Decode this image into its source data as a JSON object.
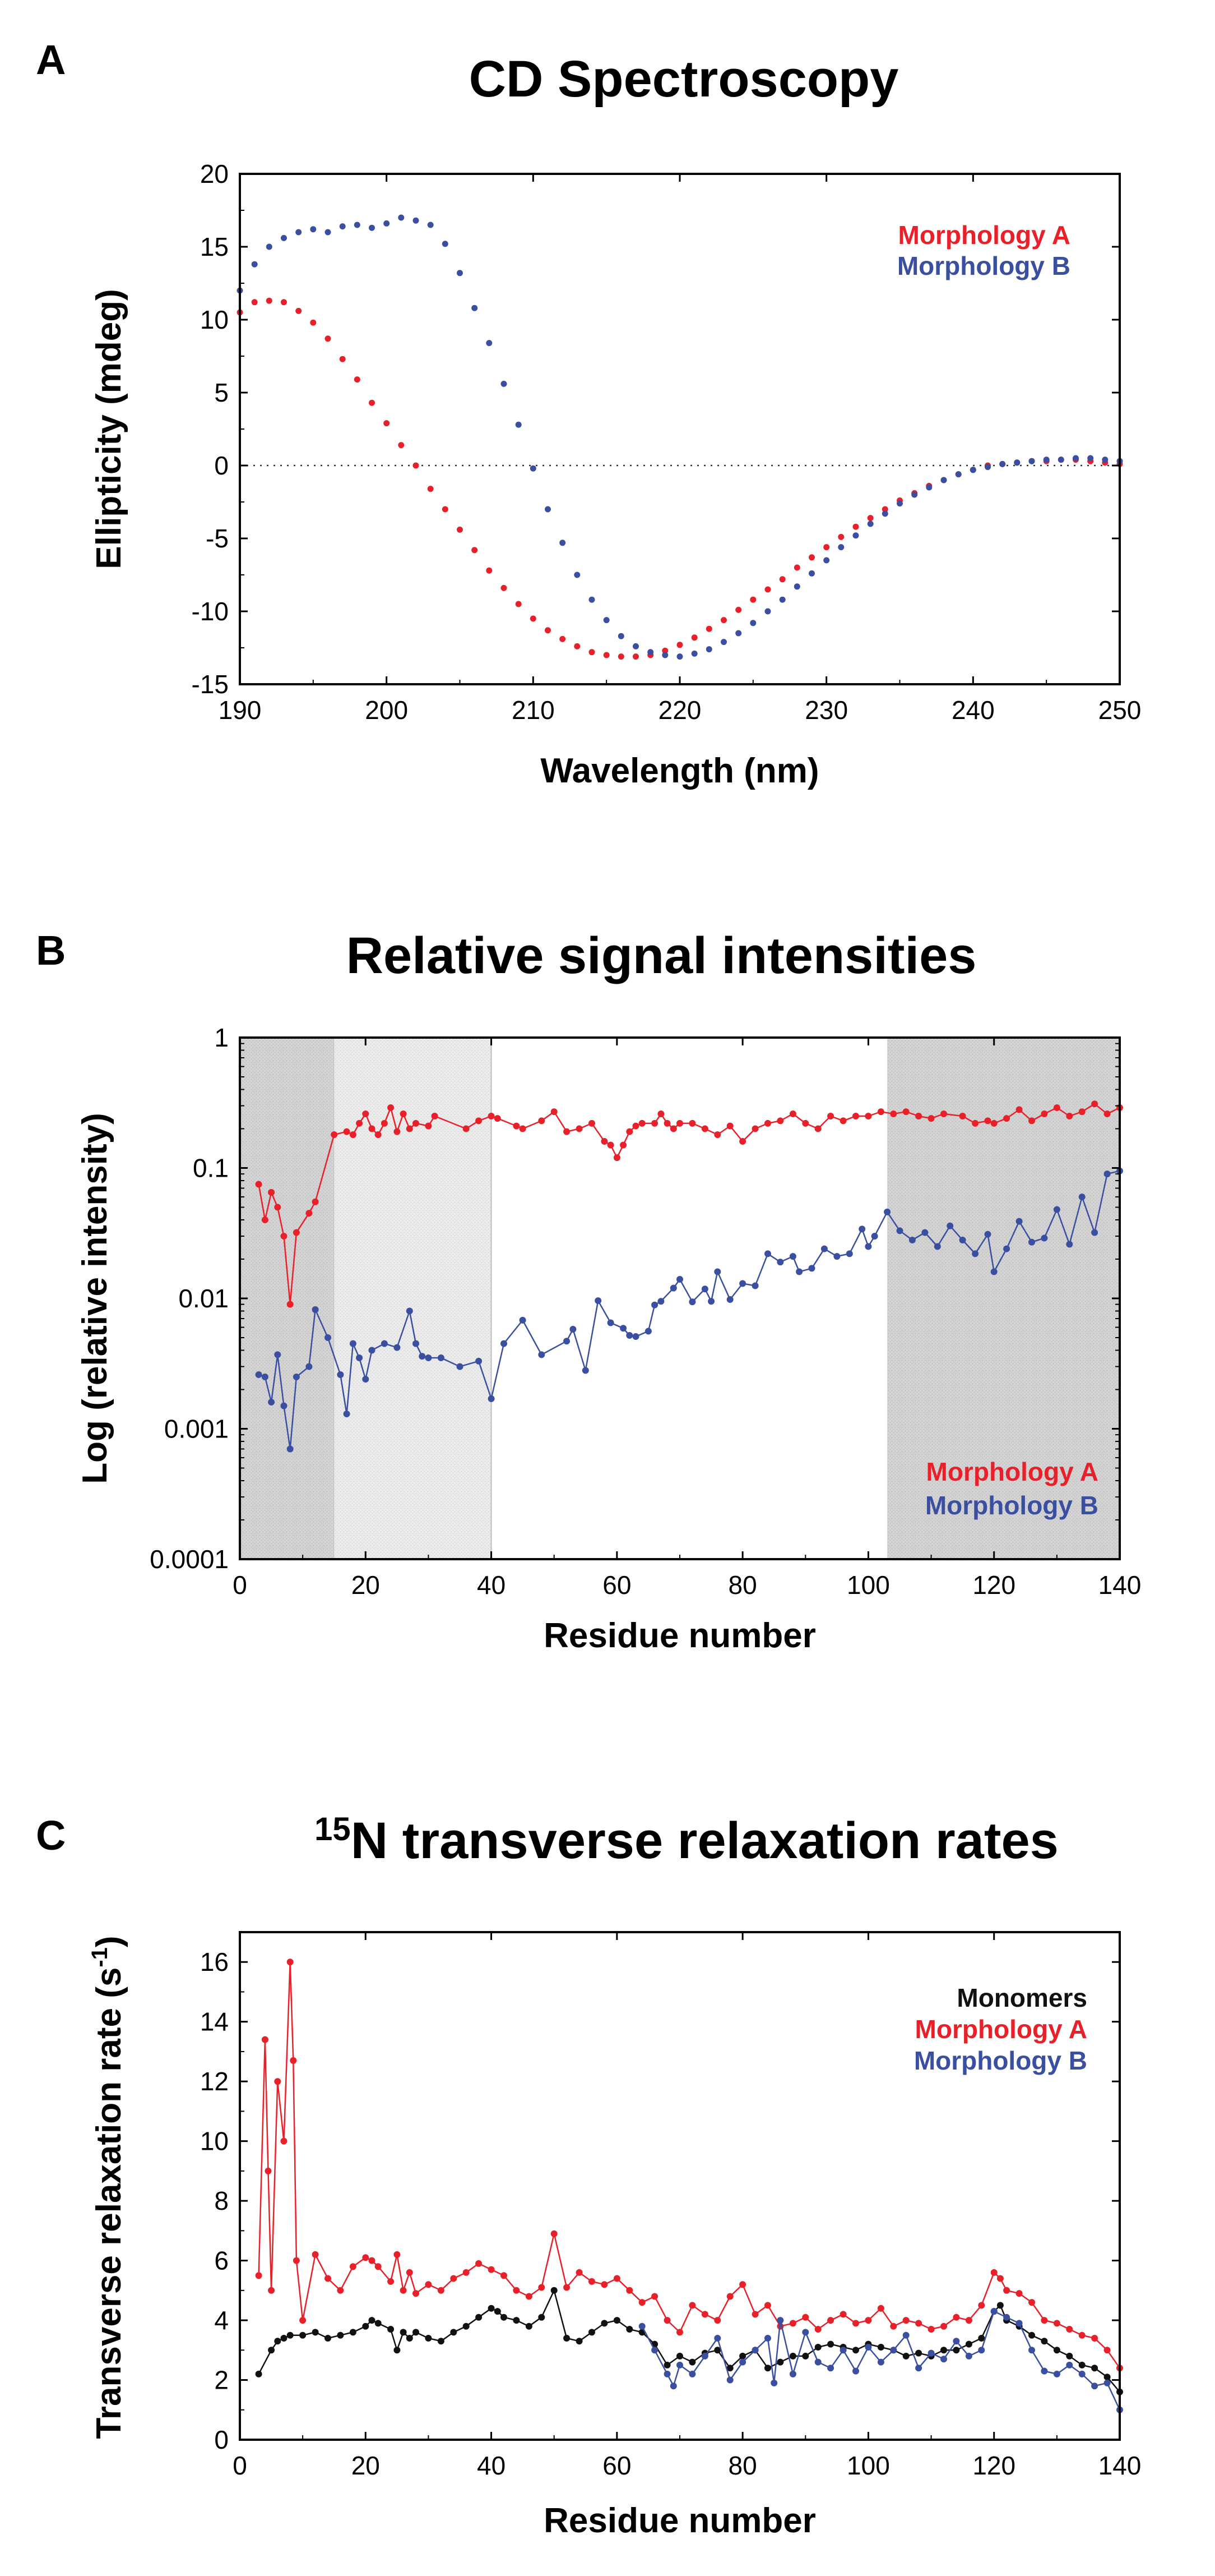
{
  "colors": {
    "morphology_a": "#e8202a",
    "morphology_b": "#3a4fa0",
    "monomers": "#111111",
    "shade": "#d9d9d9"
  },
  "chart_data": [
    {
      "panel": "A",
      "type": "scatter",
      "title": "CD Spectroscopy",
      "xlabel": "Wavelength (nm)",
      "ylabel": "Ellipticity (mdeg)",
      "xlim": [
        190,
        250
      ],
      "ylim": [
        -15,
        20
      ],
      "xticks": [
        "190",
        "200",
        "210",
        "220",
        "230",
        "240",
        "250"
      ],
      "yticks": [
        "-15",
        "-10",
        "-5",
        "0",
        "5",
        "10",
        "15",
        "20"
      ],
      "zero_line": true,
      "legend": [
        "Morphology A",
        "Morphology B"
      ],
      "series": [
        {
          "name": "Morphology A",
          "color_key": "morphology_a",
          "x": [
            190,
            191,
            192,
            193,
            194,
            195,
            196,
            197,
            198,
            199,
            200,
            201,
            202,
            203,
            204,
            205,
            206,
            207,
            208,
            209,
            210,
            211,
            212,
            213,
            214,
            215,
            216,
            217,
            218,
            219,
            220,
            221,
            222,
            223,
            224,
            225,
            226,
            227,
            228,
            229,
            230,
            231,
            232,
            233,
            234,
            235,
            236,
            237,
            238,
            239,
            240,
            241,
            242,
            243,
            244,
            245,
            246,
            247,
            248,
            249,
            250
          ],
          "y": [
            10.5,
            11.2,
            11.3,
            11.2,
            10.6,
            9.8,
            8.7,
            7.3,
            5.9,
            4.3,
            2.9,
            1.4,
            0,
            -1.6,
            -3.0,
            -4.4,
            -5.8,
            -7.2,
            -8.4,
            -9.5,
            -10.5,
            -11.3,
            -11.9,
            -12.4,
            -12.8,
            -13.0,
            -13.1,
            -13.1,
            -13.0,
            -12.7,
            -12.3,
            -11.8,
            -11.2,
            -10.6,
            -9.9,
            -9.2,
            -8.5,
            -7.8,
            -7.0,
            -6.3,
            -5.6,
            -4.9,
            -4.2,
            -3.6,
            -3.0,
            -2.4,
            -1.9,
            -1.4,
            -1.0,
            -0.6,
            -0.3,
            0,
            0.1,
            0.2,
            0.3,
            0.3,
            0.4,
            0.4,
            0.3,
            0.2,
            0.1
          ]
        },
        {
          "name": "Morphology B",
          "color_key": "morphology_b",
          "x": [
            190,
            191,
            192,
            193,
            194,
            195,
            196,
            197,
            198,
            199,
            200,
            201,
            202,
            203,
            204,
            205,
            206,
            207,
            208,
            209,
            210,
            211,
            212,
            213,
            214,
            215,
            216,
            217,
            218,
            219,
            220,
            221,
            222,
            223,
            224,
            225,
            226,
            227,
            228,
            229,
            230,
            231,
            232,
            233,
            234,
            235,
            236,
            237,
            238,
            239,
            240,
            241,
            242,
            243,
            244,
            245,
            246,
            247,
            248,
            249,
            250
          ],
          "y": [
            12.0,
            13.8,
            15.0,
            15.6,
            16.0,
            16.2,
            16.0,
            16.4,
            16.5,
            16.3,
            16.6,
            17.0,
            16.8,
            16.5,
            15.2,
            13.2,
            10.8,
            8.4,
            5.6,
            2.8,
            -0.2,
            -3.0,
            -5.3,
            -7.5,
            -9.2,
            -10.6,
            -11.7,
            -12.4,
            -12.8,
            -13.0,
            -13.1,
            -12.9,
            -12.6,
            -12.1,
            -11.5,
            -10.8,
            -10.0,
            -9.2,
            -8.3,
            -7.4,
            -6.5,
            -5.6,
            -4.8,
            -4.0,
            -3.3,
            -2.6,
            -2.0,
            -1.5,
            -1.0,
            -0.6,
            -0.3,
            -0.1,
            0.1,
            0.2,
            0.3,
            0.4,
            0.4,
            0.5,
            0.5,
            0.4,
            0.3
          ]
        }
      ]
    },
    {
      "panel": "B",
      "type": "line",
      "title": "Relative signal intensities",
      "xlabel": "Residue number",
      "ylabel": "Log (relative intensity)",
      "xlim": [
        0,
        140
      ],
      "ylim": [
        0.0001,
        1
      ],
      "yscale": "log",
      "xticks": [
        "0",
        "20",
        "40",
        "60",
        "80",
        "100",
        "120",
        "140"
      ],
      "yticks": [
        "0.0001",
        "0.001",
        "0.01",
        "0.1",
        "1"
      ],
      "shaded_regions": [
        [
          0,
          15,
          "dark"
        ],
        [
          15,
          40,
          "light"
        ],
        [
          103,
          140,
          "dark"
        ]
      ],
      "legend": [
        "Morphology A",
        "Morphology B"
      ],
      "series": [
        {
          "name": "Morphology A",
          "color_key": "morphology_a",
          "x": [
            3,
            4,
            5,
            6,
            7,
            8,
            9,
            11,
            12,
            15,
            17,
            18,
            19,
            20,
            21,
            22,
            23,
            24,
            25,
            26,
            27,
            28,
            30,
            31,
            36,
            38,
            40,
            41,
            44,
            45,
            48,
            50,
            52,
            54,
            56,
            58,
            59,
            60,
            61,
            62,
            63,
            64,
            66,
            67,
            68,
            69,
            70,
            72,
            74,
            76,
            78,
            80,
            82,
            84,
            86,
            88,
            90,
            92,
            94,
            96,
            98,
            100,
            102,
            104,
            106,
            108,
            110,
            112,
            115,
            117,
            119,
            120,
            122,
            124,
            126,
            128,
            130,
            132,
            134,
            136,
            138,
            140
          ],
          "y": [
            0.075,
            0.04,
            0.065,
            0.05,
            0.03,
            0.009,
            0.032,
            0.045,
            0.055,
            0.18,
            0.19,
            0.18,
            0.22,
            0.26,
            0.2,
            0.18,
            0.22,
            0.29,
            0.19,
            0.26,
            0.2,
            0.22,
            0.21,
            0.25,
            0.2,
            0.23,
            0.25,
            0.24,
            0.21,
            0.2,
            0.23,
            0.27,
            0.19,
            0.2,
            0.22,
            0.16,
            0.15,
            0.12,
            0.15,
            0.19,
            0.21,
            0.22,
            0.22,
            0.26,
            0.22,
            0.2,
            0.22,
            0.22,
            0.2,
            0.18,
            0.21,
            0.16,
            0.2,
            0.22,
            0.23,
            0.26,
            0.22,
            0.2,
            0.25,
            0.23,
            0.25,
            0.25,
            0.27,
            0.26,
            0.27,
            0.25,
            0.24,
            0.26,
            0.25,
            0.22,
            0.23,
            0.22,
            0.24,
            0.28,
            0.23,
            0.26,
            0.29,
            0.25,
            0.27,
            0.31,
            0.26,
            0.29
          ]
        },
        {
          "name": "Morphology B",
          "color_key": "morphology_b",
          "x": [
            3,
            4,
            5,
            6,
            7,
            8,
            9,
            11,
            12,
            14,
            16,
            17,
            18,
            19,
            20,
            21,
            23,
            25,
            27,
            28,
            29,
            30,
            32,
            35,
            38,
            40,
            42,
            45,
            48,
            52,
            53,
            55,
            57,
            59,
            61,
            62,
            63,
            65,
            66,
            67,
            69,
            70,
            72,
            74,
            75,
            76,
            78,
            80,
            82,
            84,
            86,
            88,
            89,
            91,
            93,
            95,
            97,
            99,
            100,
            101,
            103,
            105,
            107,
            109,
            111,
            113,
            115,
            117,
            119,
            120,
            122,
            124,
            126,
            128,
            130,
            132,
            134,
            136,
            138,
            140
          ],
          "y": [
            0.0026,
            0.0025,
            0.0016,
            0.0037,
            0.0015,
            0.0007,
            0.0025,
            0.003,
            0.0082,
            0.005,
            0.0026,
            0.0013,
            0.0045,
            0.0035,
            0.0024,
            0.004,
            0.0045,
            0.0042,
            0.008,
            0.0045,
            0.0036,
            0.0035,
            0.0035,
            0.003,
            0.0033,
            0.0017,
            0.0045,
            0.0068,
            0.0037,
            0.0047,
            0.0058,
            0.0028,
            0.0096,
            0.0065,
            0.0059,
            0.0052,
            0.0051,
            0.0056,
            0.0089,
            0.0095,
            0.012,
            0.014,
            0.0094,
            0.0118,
            0.0095,
            0.016,
            0.0098,
            0.013,
            0.0125,
            0.022,
            0.019,
            0.021,
            0.016,
            0.017,
            0.024,
            0.021,
            0.022,
            0.034,
            0.025,
            0.03,
            0.046,
            0.033,
            0.028,
            0.032,
            0.025,
            0.036,
            0.028,
            0.022,
            0.031,
            0.016,
            0.024,
            0.039,
            0.027,
            0.029,
            0.048,
            0.026,
            0.06,
            0.032,
            0.09,
            0.095
          ]
        }
      ]
    },
    {
      "panel": "C",
      "type": "line",
      "title": "N transverse relaxation rates",
      "title_superscript": "15",
      "xlabel": "Residue number",
      "ylabel": "Transverse relaxation rate (s",
      "ylabel_superscript": "-1",
      "ylabel_suffix": ")",
      "xlim": [
        0,
        140
      ],
      "ylim": [
        0,
        17
      ],
      "xticks": [
        "0",
        "20",
        "40",
        "60",
        "80",
        "100",
        "120",
        "140"
      ],
      "yticks": [
        "0",
        "2",
        "4",
        "6",
        "8",
        "10",
        "12",
        "14",
        "16"
      ],
      "legend": [
        "Monomers",
        "Morphology A",
        "Morphology B"
      ],
      "series": [
        {
          "name": "Monomers",
          "color_key": "monomers",
          "x": [
            3,
            5,
            6,
            7,
            8,
            10,
            12,
            14,
            16,
            18,
            20,
            21,
            22,
            24,
            25,
            26,
            27,
            28,
            30,
            32,
            34,
            36,
            38,
            40,
            41,
            42,
            44,
            46,
            48,
            50,
            52,
            54,
            56,
            58,
            60,
            62,
            64,
            66,
            68,
            70,
            72,
            74,
            76,
            78,
            80,
            82,
            84,
            86,
            88,
            90,
            92,
            94,
            96,
            98,
            100,
            102,
            104,
            106,
            108,
            110,
            112,
            114,
            116,
            118,
            120,
            121,
            122,
            124,
            126,
            128,
            130,
            132,
            134,
            136,
            138,
            140
          ],
          "y": [
            2.2,
            3.0,
            3.3,
            3.4,
            3.5,
            3.5,
            3.6,
            3.4,
            3.5,
            3.6,
            3.8,
            4.0,
            3.9,
            3.7,
            3.0,
            3.6,
            3.4,
            3.6,
            3.4,
            3.3,
            3.6,
            3.8,
            4.1,
            4.4,
            4.3,
            4.1,
            4.0,
            3.8,
            4.1,
            5.0,
            3.4,
            3.3,
            3.6,
            3.9,
            4.0,
            3.7,
            3.6,
            3.2,
            2.5,
            2.8,
            2.6,
            2.9,
            3.0,
            2.4,
            2.8,
            3.0,
            2.4,
            2.6,
            2.8,
            2.8,
            3.1,
            3.2,
            3.1,
            3.0,
            3.2,
            3.1,
            3.0,
            2.8,
            2.9,
            2.8,
            3.0,
            3.0,
            3.2,
            3.4,
            4.3,
            4.5,
            4.0,
            3.8,
            3.5,
            3.3,
            3.0,
            2.8,
            2.5,
            2.4,
            2.1,
            1.6
          ]
        },
        {
          "name": "Morphology A",
          "color_key": "morphology_a",
          "x": [
            3,
            4,
            4.5,
            5,
            6,
            7,
            8,
            8.5,
            9,
            10,
            12,
            14,
            16,
            18,
            20,
            21,
            22,
            24,
            25,
            26,
            27,
            28,
            30,
            32,
            34,
            36,
            38,
            40,
            42,
            44,
            46,
            48,
            50,
            52,
            54,
            56,
            58,
            60,
            62,
            64,
            66,
            68,
            70,
            72,
            74,
            76,
            78,
            80,
            82,
            84,
            86,
            88,
            90,
            92,
            94,
            96,
            98,
            100,
            102,
            104,
            106,
            108,
            110,
            112,
            114,
            116,
            118,
            120,
            121,
            122,
            124,
            126,
            128,
            130,
            132,
            134,
            136,
            138,
            140
          ],
          "y": [
            5.5,
            13.4,
            9.0,
            5.0,
            12.0,
            10.0,
            16.0,
            12.7,
            6.0,
            4.0,
            6.2,
            5.4,
            5.0,
            5.8,
            6.1,
            6.0,
            5.8,
            5.3,
            6.2,
            5.0,
            5.6,
            4.9,
            5.2,
            5.0,
            5.4,
            5.6,
            5.9,
            5.7,
            5.5,
            5.0,
            4.8,
            5.1,
            6.9,
            5.1,
            5.6,
            5.3,
            5.2,
            5.4,
            5.0,
            4.6,
            4.8,
            4.0,
            3.6,
            4.5,
            4.2,
            4.0,
            4.8,
            5.2,
            4.2,
            4.5,
            3.8,
            3.9,
            4.1,
            3.7,
            4.0,
            4.2,
            3.9,
            4.0,
            4.4,
            3.8,
            4.0,
            3.9,
            3.7,
            3.8,
            4.1,
            4.0,
            4.5,
            5.6,
            5.4,
            5.0,
            4.9,
            4.6,
            4.0,
            3.9,
            3.7,
            3.5,
            3.4,
            3.0,
            2.4
          ]
        },
        {
          "name": "Morphology B",
          "color_key": "morphology_b",
          "x": [
            64,
            66,
            68,
            69,
            70,
            72,
            74,
            76,
            78,
            80,
            82,
            84,
            85,
            86,
            88,
            90,
            92,
            94,
            96,
            98,
            100,
            102,
            104,
            106,
            108,
            110,
            112,
            114,
            116,
            118,
            120,
            122,
            124,
            126,
            128,
            130,
            132,
            134,
            136,
            138,
            140
          ],
          "y": [
            3.8,
            3.0,
            2.2,
            1.8,
            2.5,
            2.2,
            2.8,
            3.4,
            2.0,
            2.6,
            3.0,
            3.4,
            1.9,
            4.0,
            2.2,
            3.6,
            2.6,
            2.4,
            3.0,
            2.3,
            3.1,
            2.6,
            3.0,
            3.5,
            2.4,
            2.9,
            2.7,
            3.3,
            2.8,
            3.0,
            4.3,
            4.1,
            3.9,
            3.0,
            2.3,
            2.2,
            2.5,
            2.2,
            1.8,
            1.9,
            1.0
          ]
        }
      ]
    }
  ]
}
